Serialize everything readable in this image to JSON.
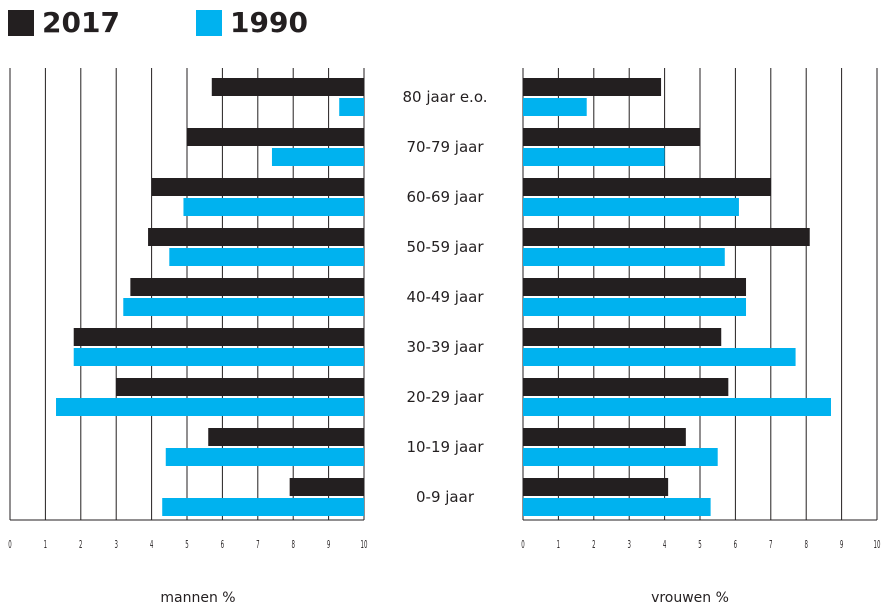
{
  "legend": [
    {
      "label": "2017",
      "color": "#231f20"
    },
    {
      "label": "1990",
      "color": "#00b2ef"
    }
  ],
  "chart_data": {
    "type": "bar",
    "orientation": "horizontal",
    "layout": "population-pyramid",
    "categories": [
      "80 jaar e.o.",
      "70-79 jaar",
      "60-69 jaar",
      "50-59 jaar",
      "40-49 jaar",
      "30-39 jaar",
      "20-29 jaar",
      "10-19 jaar",
      "0-9 jaar"
    ],
    "panels": [
      {
        "name": "mannen",
        "xlabel": "mannen %",
        "xlim": [
          0,
          10
        ],
        "direction": "reversed",
        "ticks": [
          "0",
          "1",
          "2",
          "3",
          "4",
          "5",
          "6",
          "7",
          "8",
          "9",
          "10"
        ],
        "grid": true,
        "series": [
          {
            "name": "2017",
            "color": "#231f20",
            "values": [
              4.3,
              5.0,
              6.0,
              6.1,
              6.6,
              8.2,
              7.0,
              4.4,
              2.1
            ]
          },
          {
            "name": "1990",
            "color": "#00b2ef",
            "values": [
              0.7,
              2.6,
              5.1,
              5.5,
              6.8,
              8.2,
              8.7,
              5.6,
              5.7
            ]
          }
        ]
      },
      {
        "name": "vrouwen",
        "xlabel": "vrouwen %",
        "xlim": [
          0,
          10
        ],
        "direction": "normal",
        "ticks": [
          "0",
          "1",
          "2",
          "3",
          "4",
          "5",
          "6",
          "7",
          "8",
          "9",
          "10"
        ],
        "grid": true,
        "series": [
          {
            "name": "2017",
            "color": "#231f20",
            "values": [
              3.9,
              5.0,
              7.0,
              8.1,
              6.3,
              5.6,
              5.8,
              4.6,
              4.1
            ]
          },
          {
            "name": "1990",
            "color": "#00b2ef",
            "values": [
              1.8,
              4.0,
              6.1,
              5.7,
              6.3,
              7.7,
              8.7,
              5.5,
              5.3
            ]
          }
        ]
      }
    ]
  }
}
